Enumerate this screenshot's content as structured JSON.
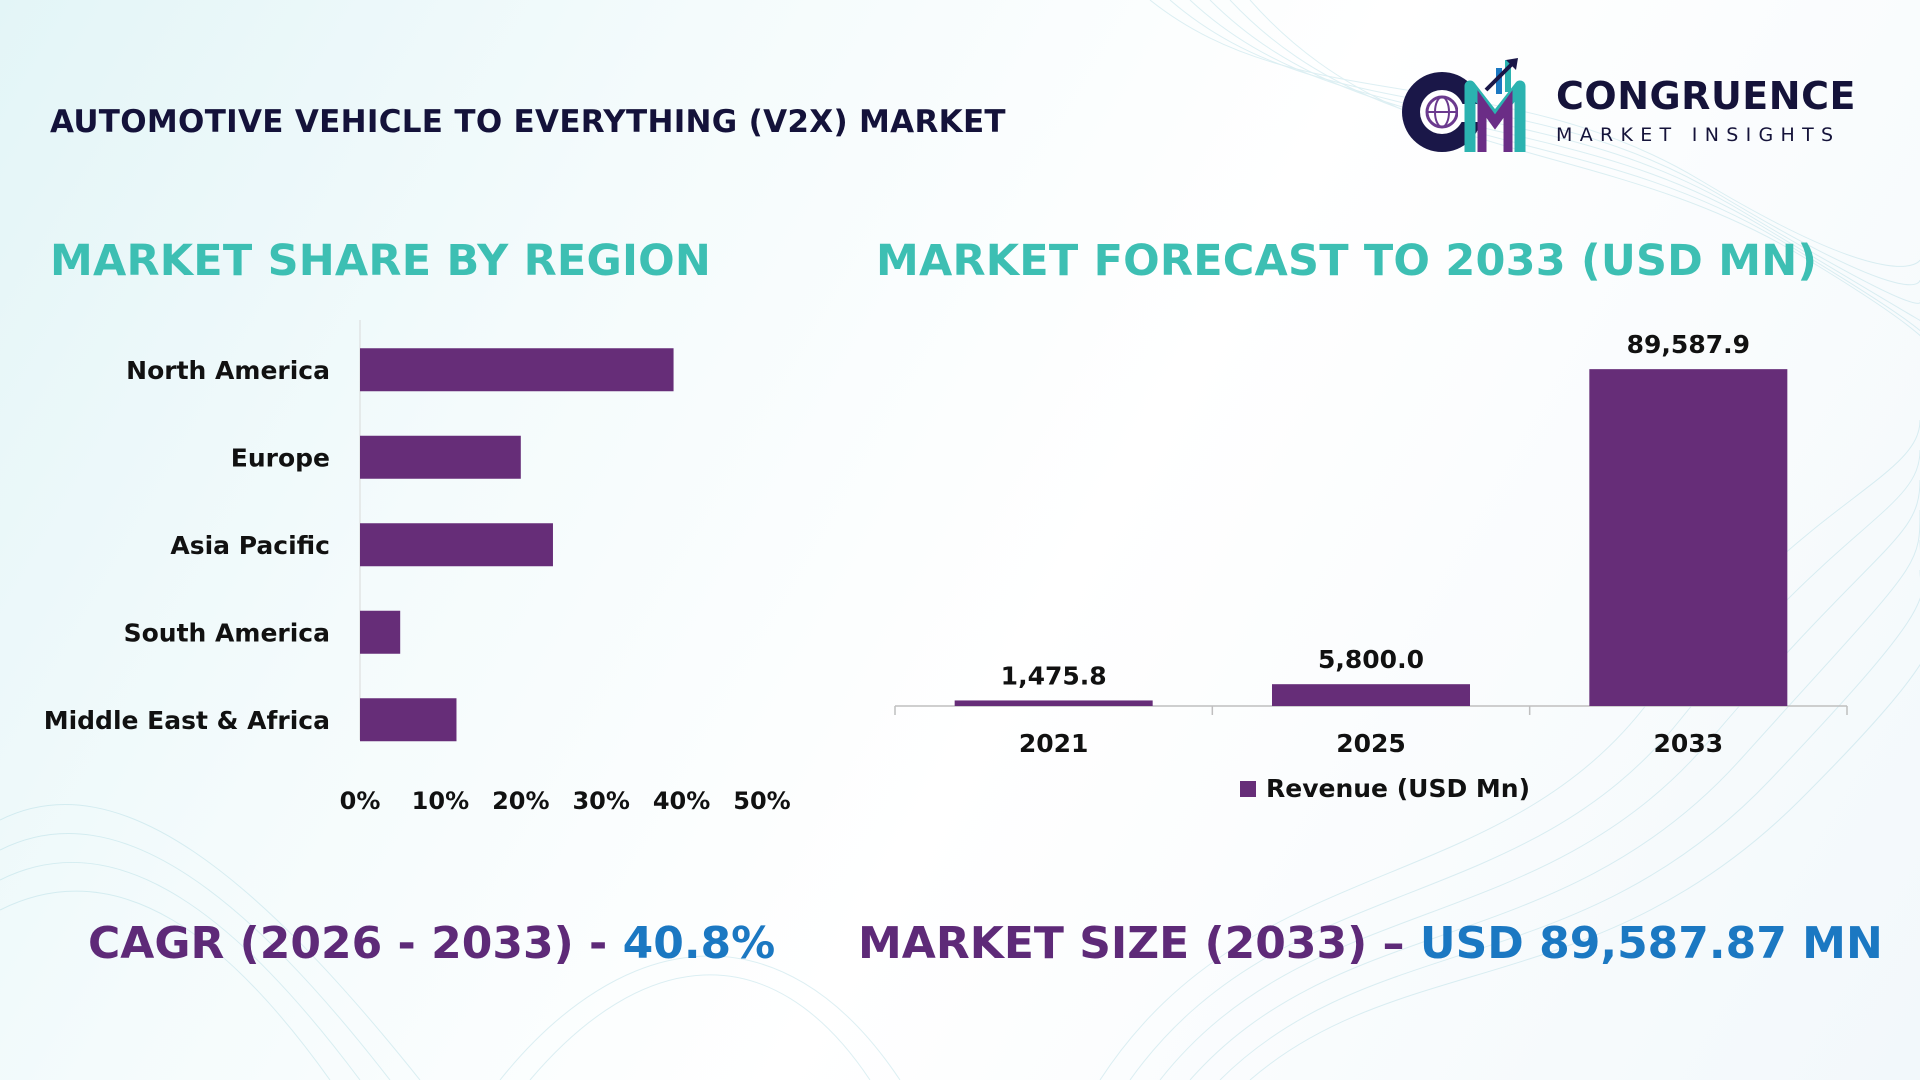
{
  "page": {
    "title": "AUTOMOTIVE VEHICLE TO EVERYTHING (V2X) MARKET"
  },
  "logo": {
    "name": "CONGRUENCE",
    "subtitle": "MARKET INSIGHTS",
    "icon": "cmi-logo-icon"
  },
  "colors": {
    "bar": "#662d78",
    "section_title": "#3dbfb3",
    "accent_purple": "#5e2a78",
    "accent_blue": "#1b78c2",
    "title_text": "#14123a"
  },
  "chart_data": [
    {
      "type": "bar",
      "orientation": "horizontal",
      "title": "MARKET SHARE BY REGION",
      "categories": [
        "North America",
        "Europe",
        "Asia Pacific",
        "South America",
        "Middle East & Africa"
      ],
      "values": [
        39,
        20,
        24,
        5,
        12
      ],
      "xlim": [
        0,
        50
      ],
      "ticks": [
        "0%",
        "10%",
        "20%",
        "30%",
        "40%",
        "50%"
      ],
      "grid": false
    },
    {
      "type": "bar",
      "orientation": "vertical",
      "title": "MARKET FORECAST TO 2033 (USD MN)",
      "categories": [
        "2021",
        "2025",
        "2033"
      ],
      "series": [
        {
          "name": "Revenue (USD Mn)",
          "values": [
            1475.8,
            5800.0,
            89587.9
          ]
        }
      ],
      "data_labels": [
        "1,475.8",
        "5,800.0",
        "89,587.9"
      ],
      "ylim": [
        0,
        100000
      ],
      "legend": "bottom",
      "grid": false
    }
  ],
  "summary": {
    "cagr_label": "CAGR (2026 - 2033) - ",
    "cagr_value": "40.8%",
    "size_label": "MARKET SIZE (2033) – ",
    "size_value": "USD 89,587.87 MN"
  }
}
